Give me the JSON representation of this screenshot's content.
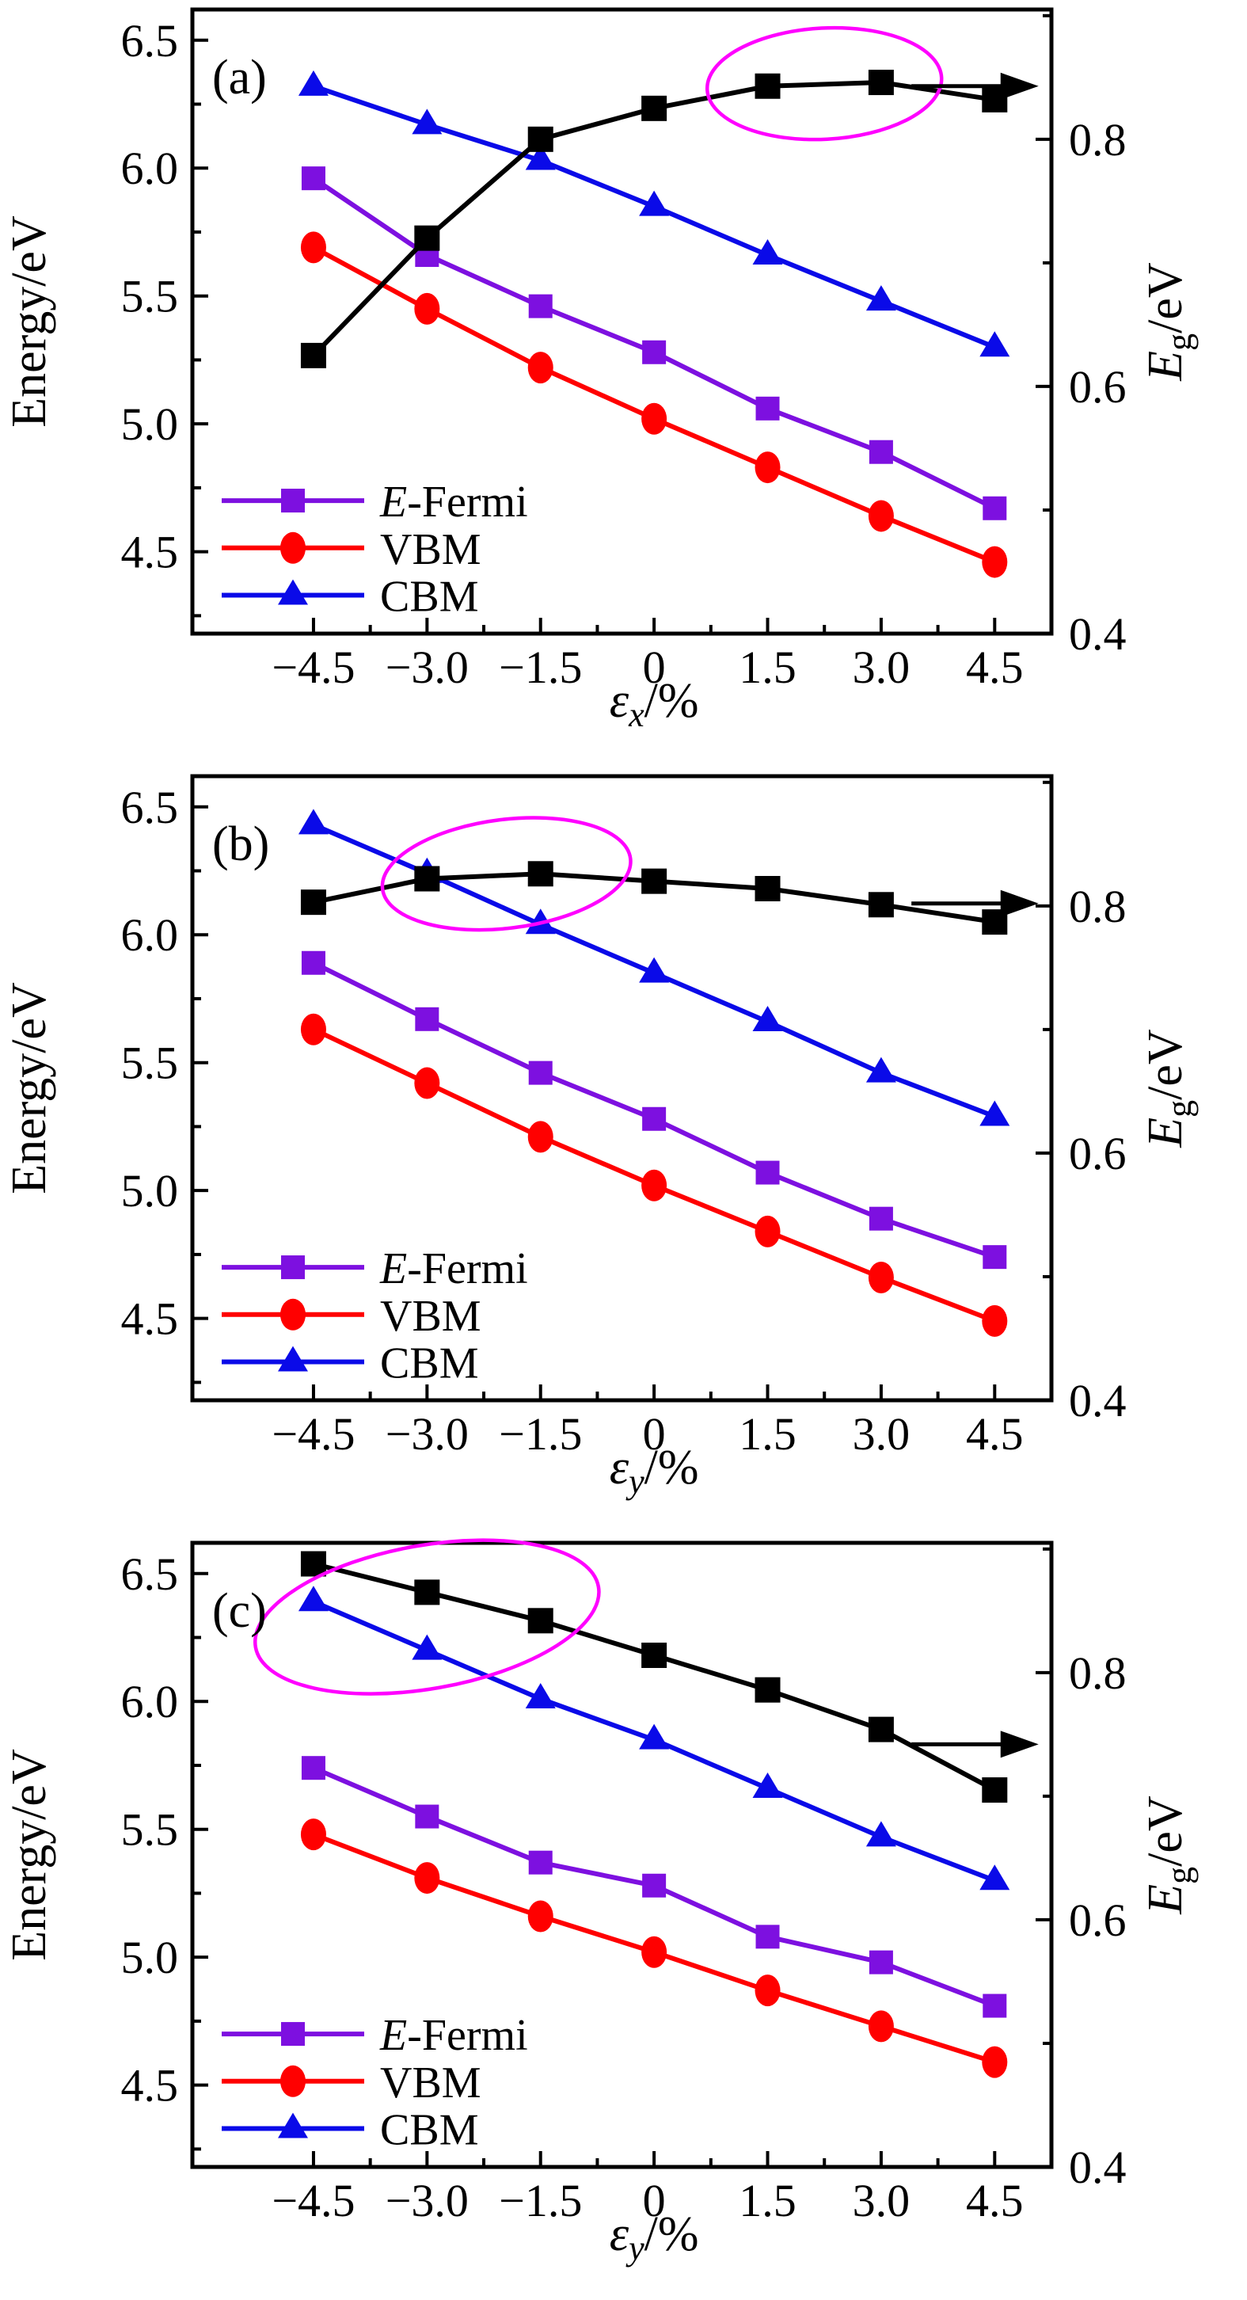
{
  "figure": {
    "background": "#ffffff",
    "panel_tags": [
      "(a)",
      "(b)",
      "(c)"
    ]
  },
  "colors": {
    "efermi": "#7D10E0",
    "vbm": "#FF0000",
    "cbm": "#0A0AE8",
    "eg": "#000000",
    "annotation_ellipse": "#FF00FF",
    "axis": "#000000"
  },
  "axes": {
    "x": {
      "range": [
        -6.1,
        5.25
      ],
      "major_ticks": [
        -4.5,
        -3.0,
        -1.5,
        0,
        1.5,
        3.0,
        4.5
      ],
      "tick_labels": [
        "−4.5",
        "−3.0",
        "−1.5",
        "0",
        "1.5",
        "3.0",
        "4.5"
      ],
      "minor_ticks": [
        -3.75,
        -2.25,
        -0.75,
        0.75,
        2.25,
        3.75
      ]
    },
    "left": {
      "title": "Energy/eV",
      "range": [
        4.18,
        6.62
      ],
      "major_ticks": [
        4.5,
        5.0,
        5.5,
        6.0,
        6.5
      ],
      "tick_labels": [
        "4.5",
        "5.0",
        "5.5",
        "6.0",
        "6.5"
      ],
      "minor_ticks": [
        4.25,
        4.75,
        5.25,
        5.75,
        6.25
      ]
    },
    "right": {
      "title_main": "E",
      "title_sub": "g",
      "title_rest": "/eV",
      "range": [
        0.4,
        0.905
      ],
      "major_ticks": [
        0.4,
        0.6,
        0.8
      ],
      "tick_labels": [
        "0.4",
        "0.6",
        "0.8"
      ],
      "minor_ticks": [
        0.5,
        0.7,
        0.9
      ]
    }
  },
  "legend": {
    "items": [
      {
        "key": "efermi",
        "label_italic": "E",
        "label_rest": "-Fermi",
        "marker": "square"
      },
      {
        "key": "vbm",
        "label_italic": "",
        "label_rest": "VBM",
        "marker": "circle"
      },
      {
        "key": "cbm",
        "label_italic": "",
        "label_rest": "CBM",
        "marker": "triangle"
      }
    ],
    "row_values": [
      4.7,
      4.515,
      4.33
    ]
  },
  "chart_data": [
    {
      "id": "a",
      "tag": "(a)",
      "type": "line",
      "xlabel": {
        "main": "ε",
        "sub": "x",
        "rest": "/%"
      },
      "x": [
        -4.5,
        -3.0,
        -1.5,
        0,
        1.5,
        3.0,
        4.5
      ],
      "series": [
        {
          "name": "E-Fermi",
          "axis": "left",
          "values": [
            5.96,
            5.66,
            5.46,
            5.28,
            5.06,
            4.89,
            4.67
          ]
        },
        {
          "name": "VBM",
          "axis": "left",
          "values": [
            5.69,
            5.45,
            5.22,
            5.02,
            4.83,
            4.64,
            4.46
          ]
        },
        {
          "name": "CBM",
          "axis": "left",
          "values": [
            6.32,
            6.17,
            6.03,
            5.85,
            5.66,
            5.48,
            5.3
          ]
        },
        {
          "name": "Eg",
          "axis": "right",
          "values": [
            0.625,
            0.72,
            0.8,
            0.825,
            0.843,
            0.846,
            0.832
          ]
        }
      ],
      "ylim_left": [
        4.18,
        6.62
      ],
      "ylim_right": [
        0.4,
        0.905
      ],
      "ellipse": {
        "cx": 2.25,
        "cy": 0.845,
        "rx": 1.55,
        "ry": 0.045,
        "rot": -3
      },
      "arrow": {
        "y": 0.843,
        "x1": 3.4,
        "x2": 5.08
      }
    },
    {
      "id": "b",
      "tag": "(b)",
      "type": "line",
      "xlabel": {
        "main": "ε",
        "sub": "y",
        "rest": "/%"
      },
      "x": [
        -4.5,
        -3.0,
        -1.5,
        0,
        1.5,
        3.0,
        4.5
      ],
      "series": [
        {
          "name": "E-Fermi",
          "axis": "left",
          "values": [
            5.89,
            5.67,
            5.46,
            5.28,
            5.07,
            4.89,
            4.74
          ]
        },
        {
          "name": "VBM",
          "axis": "left",
          "values": [
            5.63,
            5.42,
            5.21,
            5.02,
            4.84,
            4.66,
            4.49
          ]
        },
        {
          "name": "CBM",
          "axis": "left",
          "values": [
            6.43,
            6.24,
            6.04,
            5.85,
            5.66,
            5.46,
            5.29
          ]
        },
        {
          "name": "Eg",
          "axis": "right",
          "values": [
            0.803,
            0.822,
            0.826,
            0.82,
            0.814,
            0.801,
            0.787
          ]
        }
      ],
      "ylim_left": [
        4.18,
        6.62
      ],
      "ylim_right": [
        0.4,
        0.905
      ],
      "ellipse": {
        "cx": -1.95,
        "cy": 0.826,
        "rx": 1.65,
        "ry": 0.044,
        "rot": -7
      },
      "arrow": {
        "y": 0.802,
        "x1": 3.4,
        "x2": 5.08
      }
    },
    {
      "id": "c",
      "tag": "(c)",
      "type": "line",
      "xlabel": {
        "main": "ε",
        "sub": "y",
        "rest": "/%"
      },
      "x": [
        -4.5,
        -3.0,
        -1.5,
        0,
        1.5,
        3.0,
        4.5
      ],
      "series": [
        {
          "name": "E-Fermi",
          "axis": "left",
          "values": [
            5.74,
            5.55,
            5.37,
            5.28,
            5.08,
            4.98,
            4.81
          ]
        },
        {
          "name": "VBM",
          "axis": "left",
          "values": [
            5.48,
            5.31,
            5.16,
            5.02,
            4.87,
            4.73,
            4.59
          ]
        },
        {
          "name": "CBM",
          "axis": "left",
          "values": [
            6.39,
            6.2,
            6.01,
            5.85,
            5.66,
            5.47,
            5.3
          ]
        },
        {
          "name": "Eg",
          "axis": "right",
          "values": [
            0.888,
            0.865,
            0.842,
            0.814,
            0.786,
            0.754,
            0.705
          ]
        }
      ],
      "ylim_left": [
        4.18,
        6.62
      ],
      "ylim_right": [
        0.4,
        0.905
      ],
      "ellipse": {
        "cx": -3.0,
        "cy": 0.845,
        "rx": 2.3,
        "ry": 0.058,
        "rot": -10
      },
      "arrow": {
        "y": 0.742,
        "x1": 3.4,
        "x2": 5.08
      }
    }
  ]
}
